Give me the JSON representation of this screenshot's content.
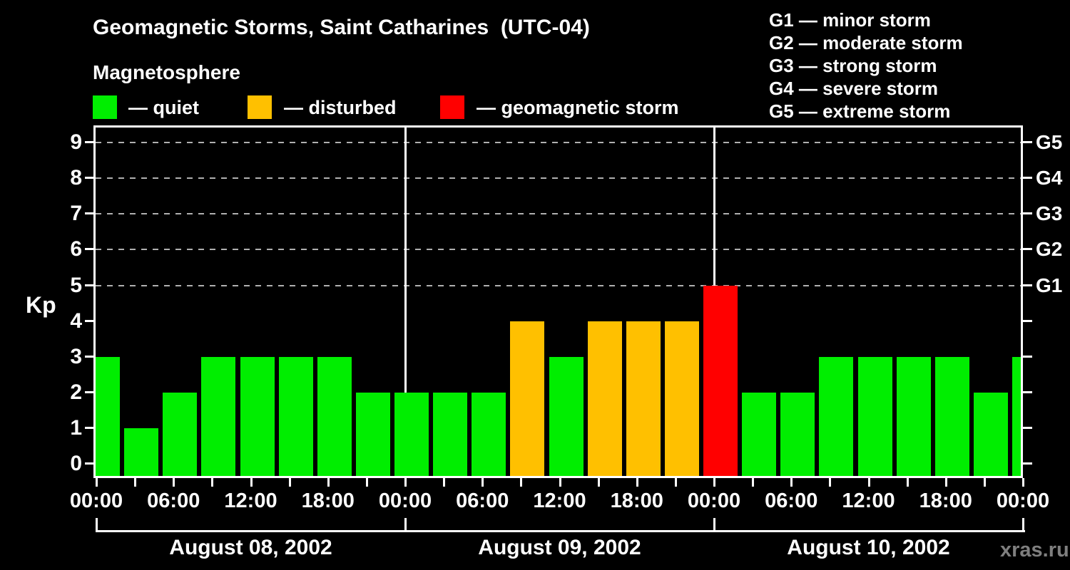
{
  "title": "Geomagnetic Storms, Saint Catharines  (UTC-04)",
  "subtitle": "Magnetosphere",
  "status_legend": [
    {
      "name": "quiet",
      "label": "— quiet",
      "color": "#00ee00"
    },
    {
      "name": "disturbed",
      "label": "— disturbed",
      "color": "#ffc000"
    },
    {
      "name": "storm",
      "label": "— geomagnetic storm",
      "color": "#ff0000"
    }
  ],
  "g_scale_legend": [
    "G1 — minor storm",
    "G2 — moderate storm",
    "G3 — strong storm",
    "G4 — severe storm",
    "G5 — extreme storm"
  ],
  "watermark": "xras.ru",
  "chart_data": {
    "type": "bar",
    "title": "Geomagnetic Storms, Saint Catharines (UTC-04)",
    "ylabel": "Kp",
    "ylim": [
      0,
      9
    ],
    "y_ticks": [
      0,
      1,
      2,
      3,
      4,
      5,
      6,
      7,
      8,
      9
    ],
    "dashed_gridlines_at_kp": [
      5,
      6,
      7,
      8,
      9
    ],
    "right_axis_labels": [
      {
        "kp": 5,
        "label": "G1"
      },
      {
        "kp": 6,
        "label": "G2"
      },
      {
        "kp": 7,
        "label": "G3"
      },
      {
        "kp": 8,
        "label": "G4"
      },
      {
        "kp": 9,
        "label": "G5"
      }
    ],
    "interval_hours": 3,
    "x_tick_hour_labels": [
      "00:00",
      "06:00",
      "12:00",
      "18:00",
      "00:00",
      "06:00",
      "12:00",
      "18:00",
      "00:00",
      "06:00",
      "12:00",
      "18:00",
      "00:00"
    ],
    "days": [
      {
        "date": "August 08, 2002",
        "kp_values": [
          3,
          1,
          2,
          3,
          3,
          3,
          3,
          2
        ]
      },
      {
        "date": "August 09, 2002",
        "kp_values": [
          2,
          2,
          2,
          4,
          3,
          4,
          4,
          4
        ]
      },
      {
        "date": "August 10, 2002",
        "kp_values": [
          5,
          2,
          2,
          3,
          3,
          3,
          3,
          2
        ]
      }
    ],
    "next_day_partial_kp": 3,
    "color_thresholds": {
      "quiet_kp_max": 3,
      "disturbed_kp": 4,
      "storm_kp_min": 5
    },
    "colors": {
      "quiet": "#00ee00",
      "disturbed": "#ffc000",
      "storm": "#ff0000"
    },
    "legend_position": "top",
    "grid": "dashed horizontal at storm levels only",
    "background": "#000000"
  }
}
